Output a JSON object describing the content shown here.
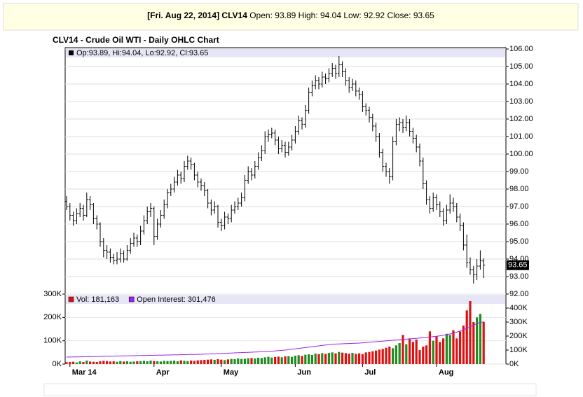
{
  "header": {
    "date": "[Fri. Aug 22, 2014]",
    "symbol": "CLV14",
    "fields": [
      {
        "label": "Open:",
        "value": 93.89
      },
      {
        "label": "High:",
        "value": 94.04
      },
      {
        "label": "Low:",
        "value": 92.92
      },
      {
        "label": "Close:",
        "value": 93.65
      }
    ]
  },
  "chart_data": [
    {
      "type": "ohlc",
      "title": "CLV14 - Crude Oil WTI - Daily OHLC Chart",
      "legend": "Op:93.89, Hi:94.04, Lo:92.92, Cl:93.65",
      "color": "#000000",
      "categories": [
        null,
        "Mar 14",
        null,
        null,
        null,
        null,
        null,
        null,
        null,
        null,
        null,
        null,
        null,
        null,
        null,
        null,
        null,
        null,
        null,
        null,
        null,
        null,
        null,
        null,
        null,
        null,
        "Apr",
        null,
        null,
        null,
        null,
        null,
        null,
        null,
        null,
        null,
        null,
        null,
        null,
        null,
        null,
        null,
        null,
        null,
        null,
        null,
        "May",
        null,
        null,
        null,
        null,
        null,
        null,
        null,
        null,
        null,
        null,
        null,
        null,
        null,
        null,
        null,
        null,
        null,
        null,
        null,
        null,
        null,
        "Jun",
        null,
        null,
        null,
        null,
        null,
        null,
        null,
        null,
        null,
        null,
        null,
        null,
        null,
        null,
        null,
        null,
        null,
        null,
        null,
        "Jul",
        null,
        null,
        null,
        null,
        null,
        null,
        null,
        null,
        null,
        null,
        null,
        null,
        null,
        null,
        null,
        null,
        null,
        null,
        null,
        null,
        null,
        "Aug",
        null,
        null,
        null,
        null,
        null,
        null,
        null,
        null,
        null,
        null,
        null,
        null,
        null,
        null
      ],
      "open": [
        97.3,
        97.0,
        96.5,
        96.2,
        96.6,
        96.9,
        96.5,
        97.4,
        97.1,
        96.3,
        96.0,
        95.0,
        94.5,
        94.4,
        94.1,
        93.9,
        94.0,
        94.3,
        94.0,
        94.5,
        94.9,
        95.2,
        95.0,
        95.6,
        96.2,
        96.7,
        96.9,
        95.3,
        96.0,
        96.5,
        97.1,
        97.8,
        98.0,
        98.4,
        98.8,
        98.6,
        99.3,
        99.6,
        99.4,
        98.8,
        98.4,
        98.2,
        97.9,
        97.2,
        96.8,
        97.0,
        96.1,
        95.9,
        96.4,
        96.3,
        96.8,
        97.0,
        97.2,
        97.5,
        98.5,
        99.0,
        98.8,
        99.3,
        99.8,
        100.2,
        101.0,
        101.1,
        101.2,
        100.8,
        100.3,
        100.5,
        100.1,
        100.4,
        100.8,
        101.3,
        101.9,
        101.7,
        102.5,
        103.5,
        103.9,
        104.2,
        104.0,
        104.4,
        104.3,
        104.6,
        104.9,
        104.6,
        105.1,
        104.7,
        104.2,
        103.8,
        104.0,
        103.6,
        103.4,
        102.7,
        102.5,
        102.1,
        101.6,
        101.0,
        100.1,
        99.3,
        99.0,
        98.7,
        100.7,
        101.7,
        101.8,
        101.5,
        101.8,
        101.3,
        100.9,
        100.4,
        99.6,
        98.3,
        97.4,
        96.9,
        97.5,
        97.1,
        96.7,
        96.2,
        96.8,
        97.2,
        97.0,
        96.4,
        95.9,
        94.8,
        93.8,
        93.4,
        93.1,
        93.6,
        93.89
      ],
      "high": [
        97.6,
        97.2,
        96.7,
        96.9,
        97.2,
        97.1,
        97.8,
        97.6,
        97.2,
        96.5,
        96.1,
        95.2,
        94.8,
        94.6,
        94.3,
        94.4,
        94.6,
        94.5,
        94.8,
        95.2,
        95.5,
        95.4,
        95.9,
        96.5,
        97.0,
        97.2,
        97.0,
        96.3,
        96.8,
        97.4,
        98.0,
        98.3,
        98.7,
        99.1,
        99.0,
        99.6,
        99.9,
        99.8,
        99.5,
        99.0,
        98.6,
        98.4,
        98.0,
        97.4,
        97.3,
        97.1,
        96.3,
        96.7,
        96.6,
        97.1,
        97.3,
        97.5,
        97.8,
        98.8,
        99.3,
        99.2,
        99.6,
        100.1,
        100.5,
        101.3,
        101.4,
        101.5,
        101.4,
        101.0,
        100.8,
        100.7,
        100.7,
        101.1,
        101.6,
        102.2,
        102.1,
        102.8,
        103.8,
        104.2,
        104.5,
        104.4,
        104.7,
        104.6,
        104.9,
        105.2,
        105.1,
        105.6,
        105.3,
        104.9,
        104.4,
        104.3,
        104.2,
        103.8,
        103.6,
        102.9,
        102.7,
        102.3,
        101.8,
        101.2,
        100.3,
        99.5,
        99.2,
        101.0,
        102.0,
        102.1,
        102.0,
        102.2,
        102.0,
        101.5,
        101.1,
        100.6,
        99.8,
        98.5,
        97.6,
        97.8,
        97.7,
        97.3,
        96.9,
        97.1,
        97.7,
        97.5,
        97.2,
        96.6,
        96.1,
        95.4,
        94.1,
        93.6,
        94.0,
        94.5,
        94.04
      ],
      "low": [
        96.8,
        96.2,
        95.9,
        96.0,
        96.4,
        96.2,
        96.4,
        96.8,
        96.0,
        95.7,
        94.7,
        94.1,
        94.0,
        93.8,
        93.7,
        93.7,
        93.8,
        93.8,
        93.9,
        94.3,
        94.7,
        94.7,
        94.8,
        95.4,
        96.0,
        96.4,
        94.8,
        95.1,
        95.8,
        96.3,
        96.9,
        97.6,
        97.8,
        98.2,
        98.3,
        98.4,
        99.1,
        99.1,
        98.5,
        98.1,
        97.9,
        97.6,
        96.9,
        96.5,
        96.6,
        95.8,
        95.6,
        95.7,
        96.0,
        96.1,
        96.6,
        96.8,
        97.0,
        97.3,
        98.3,
        98.5,
        98.6,
        99.1,
        99.6,
        100.0,
        100.7,
        100.9,
        100.5,
        100.0,
        100.1,
        99.8,
        99.9,
        100.2,
        100.6,
        101.1,
        101.4,
        101.5,
        102.3,
        103.3,
        103.7,
        103.7,
        103.8,
        104.0,
        104.1,
        104.4,
        104.3,
        104.4,
        104.4,
        103.9,
        103.5,
        103.6,
        103.3,
        103.1,
        102.4,
        102.2,
        101.8,
        101.3,
        100.7,
        99.8,
        99.0,
        98.7,
        98.3,
        98.5,
        100.5,
        101.3,
        101.2,
        101.3,
        101.0,
        100.6,
        100.1,
        99.3,
        98.0,
        97.1,
        96.6,
        96.7,
        96.8,
        96.4,
        95.9,
        96.0,
        96.6,
        96.7,
        96.1,
        95.6,
        94.5,
        93.5,
        93.1,
        92.6,
        92.8,
        93.4,
        92.92
      ],
      "close": [
        97.0,
        96.5,
        96.2,
        96.6,
        96.9,
        96.5,
        97.4,
        97.1,
        96.3,
        96.0,
        95.0,
        94.5,
        94.4,
        94.1,
        93.9,
        94.0,
        94.3,
        94.0,
        94.5,
        94.9,
        95.2,
        95.0,
        95.6,
        96.2,
        96.7,
        96.9,
        95.3,
        96.0,
        96.5,
        97.1,
        97.8,
        98.0,
        98.4,
        98.8,
        98.6,
        99.3,
        99.6,
        99.4,
        98.8,
        98.4,
        98.2,
        97.9,
        97.2,
        96.8,
        97.0,
        96.1,
        95.9,
        96.4,
        96.3,
        96.8,
        97.0,
        97.2,
        97.5,
        98.5,
        99.0,
        98.8,
        99.3,
        99.8,
        100.2,
        101.0,
        101.1,
        101.2,
        100.8,
        100.3,
        100.5,
        100.1,
        100.4,
        100.8,
        101.3,
        101.9,
        101.7,
        102.5,
        103.5,
        103.9,
        104.2,
        104.0,
        104.4,
        104.3,
        104.6,
        104.9,
        104.6,
        105.1,
        104.7,
        104.2,
        103.8,
        104.0,
        103.6,
        103.4,
        102.7,
        102.5,
        102.1,
        101.6,
        101.0,
        100.1,
        99.3,
        99.0,
        98.7,
        100.7,
        101.7,
        101.8,
        101.5,
        101.8,
        101.3,
        100.9,
        100.4,
        99.6,
        98.3,
        97.4,
        96.9,
        97.5,
        97.1,
        96.7,
        96.2,
        96.8,
        97.2,
        97.0,
        96.4,
        95.9,
        94.8,
        93.8,
        93.4,
        93.1,
        93.6,
        93.9,
        93.65
      ],
      "ylim": [
        92,
        106
      ],
      "yticks": [
        {
          "value": 92,
          "label": "92.00"
        },
        {
          "value": 93,
          "label": "93.00"
        },
        {
          "value": 94,
          "label": "94.00"
        },
        {
          "value": 95,
          "label": "95.00"
        },
        {
          "value": 96,
          "label": "96.00"
        },
        {
          "value": 97,
          "label": "97.00"
        },
        {
          "value": 98,
          "label": "98.00"
        },
        {
          "value": 99,
          "label": "99.00"
        },
        {
          "value": 100,
          "label": "100.00"
        },
        {
          "value": 101,
          "label": "101.00"
        },
        {
          "value": 102,
          "label": "102.00"
        },
        {
          "value": 103,
          "label": "103.00"
        },
        {
          "value": 104,
          "label": "104.00"
        },
        {
          "value": 105,
          "label": "105.00"
        },
        {
          "value": 106,
          "label": "106.00"
        }
      ],
      "grid": true
    },
    {
      "type": "bar",
      "up_color": "#228b22",
      "series": [
        {
          "name": "Vol: 181,163",
          "color": "#dd1111",
          "values": [
            8000,
            9000,
            10000,
            7000,
            12000,
            9000,
            15000,
            11000,
            10000,
            9000,
            12000,
            14000,
            13000,
            11000,
            12000,
            10000,
            13000,
            11000,
            12000,
            10000,
            11000,
            12000,
            13000,
            14000,
            12000,
            15000,
            13000,
            12000,
            11000,
            14000,
            13000,
            14000,
            15000,
            12000,
            16000,
            14000,
            13000,
            15000,
            14000,
            16000,
            17000,
            18000,
            19000,
            20000,
            18000,
            21000,
            19000,
            17000,
            20000,
            22000,
            21000,
            24000,
            22000,
            23000,
            25000,
            26000,
            24000,
            27000,
            26000,
            29000,
            31000,
            28000,
            30000,
            32000,
            29000,
            33000,
            34000,
            31000,
            36000,
            38000,
            35000,
            40000,
            42000,
            39000,
            45000,
            43000,
            47000,
            44000,
            48000,
            50000,
            46000,
            52000,
            49000,
            47000,
            45000,
            48000,
            44000,
            46000,
            43000,
            50000,
            52000,
            55000,
            58000,
            62000,
            65000,
            70000,
            75000,
            68000,
            80000,
            90000,
            125000,
            85000,
            110000,
            95000,
            105000,
            60000,
            75000,
            80000,
            140000,
            100000,
            120000,
            95000,
            110000,
            130000,
            125000,
            145000,
            110000,
            140000,
            165000,
            230000,
            270000,
            180000,
            200000,
            215000,
            181163
          ]
        },
        {
          "name": "Open Interest: 301,476",
          "color": "#a020f0",
          "type": "line",
          "axis": "y2",
          "values": [
            50000,
            50500,
            51000,
            51500,
            52000,
            52500,
            53000,
            53500,
            54000,
            54500,
            55000,
            55500,
            56000,
            56500,
            57000,
            57500,
            58000,
            58500,
            59000,
            59500,
            60000,
            60500,
            61000,
            61500,
            62000,
            62500,
            63000,
            63500,
            64000,
            64500,
            65000,
            65500,
            66000,
            66500,
            67000,
            67500,
            68000,
            68500,
            69000,
            69500,
            70000,
            71000,
            72000,
            73000,
            74000,
            75000,
            76000,
            77000,
            78000,
            79000,
            80000,
            81000,
            82000,
            83000,
            84000,
            85000,
            86000,
            87000,
            88000,
            89000,
            90000,
            92000,
            94000,
            96000,
            98000,
            100000,
            103000,
            106000,
            109000,
            112000,
            115000,
            118000,
            121000,
            124000,
            127000,
            130000,
            133000,
            136000,
            139000,
            142000,
            143000,
            144000,
            145000,
            146000,
            147000,
            148000,
            149000,
            150000,
            152000,
            154000,
            156000,
            158000,
            160000,
            162000,
            164000,
            166000,
            168000,
            170000,
            172000,
            174000,
            176000,
            178000,
            180000,
            182000,
            184000,
            186000,
            188000,
            190000,
            193000,
            196000,
            199000,
            202000,
            206000,
            210000,
            215000,
            220000,
            228000,
            236000,
            245000,
            255000,
            265000,
            278000,
            290000,
            298000,
            301476
          ]
        }
      ],
      "ylim": [
        0,
        300000
      ],
      "yticks": [
        {
          "value": 0,
          "label": "0K"
        },
        {
          "value": 100000,
          "label": "100K"
        },
        {
          "value": 200000,
          "label": "200K"
        },
        {
          "value": 300000,
          "label": "300K"
        }
      ],
      "y2lim": [
        0,
        500000
      ],
      "y2ticks": [
        {
          "value": 0,
          "label": "0K"
        },
        {
          "value": 100000,
          "label": "100K"
        },
        {
          "value": 200000,
          "label": "200K"
        },
        {
          "value": 300000,
          "label": "300K"
        },
        {
          "value": 400000,
          "label": "400K"
        }
      ],
      "grid": true
    }
  ]
}
